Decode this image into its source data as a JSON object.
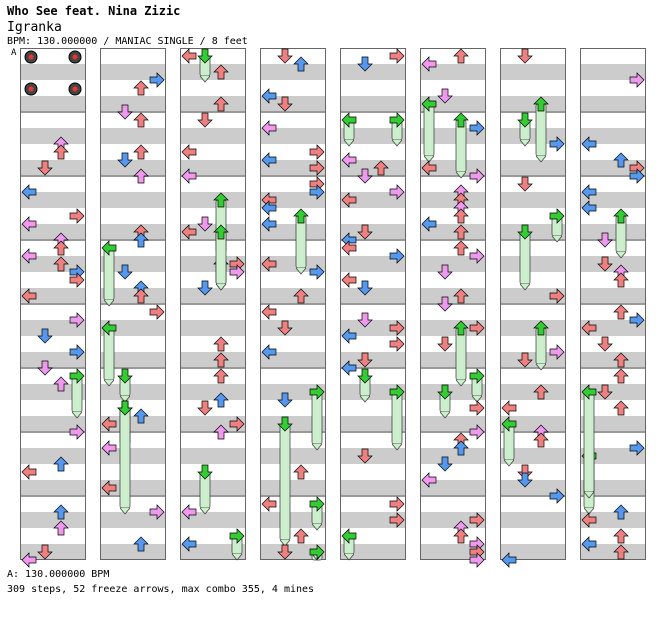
{
  "header": {
    "title": "Who See feat. Nina Zizic",
    "artist": "Igranka",
    "meta": "BPM: 130.000000 / MANIAC SINGLE / 8 feet"
  },
  "segment_marker": "A",
  "footer": {
    "bpm_line": "A: 130.000000 BPM",
    "stats_line": "309 steps, 52 freeze arrows, max combo 355, 4 mines"
  },
  "chart_data": {
    "type": "step-chart",
    "mode": "MANIAC SINGLE",
    "bpm": 130,
    "feet": 8,
    "steps": 309,
    "freeze_arrows": 52,
    "max_combo": 355,
    "mines": 4,
    "columns": 8,
    "measures_per_column": 8,
    "lanes": [
      "left",
      "down",
      "up",
      "right"
    ],
    "colors": {
      "quarter": "#f08080",
      "eighth": "#5599ee",
      "sixteenth": "#ee99ee",
      "freeze_head": "#33cc33",
      "freeze_body": "#cceecc",
      "stripe": "#cccccc",
      "border": "#999999"
    },
    "mine_positions": [
      {
        "measure": 1,
        "lane": "left",
        "beat": 0
      },
      {
        "measure": 1,
        "lane": "right",
        "beat": 0
      },
      {
        "measure": 1,
        "lane": "left",
        "beat": 2
      },
      {
        "measure": 1,
        "lane": "right",
        "beat": 2
      }
    ]
  }
}
